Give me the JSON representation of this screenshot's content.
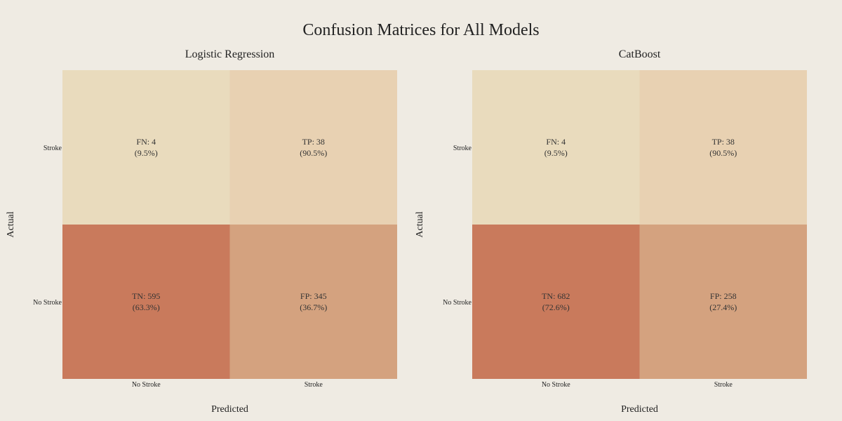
{
  "title": "Confusion Matrices for All Models",
  "chart_data": [
    {
      "type": "heatmap",
      "title": "Logistic Regression",
      "xlabel": "Predicted",
      "ylabel": "Actual",
      "x_categories": [
        "No Stroke",
        "Stroke"
      ],
      "y_categories": [
        "Stroke",
        "No Stroke"
      ],
      "cells": [
        {
          "row": 0,
          "col": 0,
          "label": "FN",
          "count": 4,
          "percent": "9.5%"
        },
        {
          "row": 0,
          "col": 1,
          "label": "TP",
          "count": 38,
          "percent": "90.5%"
        },
        {
          "row": 1,
          "col": 0,
          "label": "TN",
          "count": 595,
          "percent": "63.3%"
        },
        {
          "row": 1,
          "col": 1,
          "label": "FP",
          "count": 345,
          "percent": "36.7%"
        }
      ]
    },
    {
      "type": "heatmap",
      "title": "CatBoost",
      "xlabel": "Predicted",
      "ylabel": "Actual",
      "x_categories": [
        "No Stroke",
        "Stroke"
      ],
      "y_categories": [
        "Stroke",
        "No Stroke"
      ],
      "cells": [
        {
          "row": 0,
          "col": 0,
          "label": "FN",
          "count": 4,
          "percent": "9.5%"
        },
        {
          "row": 0,
          "col": 1,
          "label": "TP",
          "count": 38,
          "percent": "90.5%"
        },
        {
          "row": 1,
          "col": 0,
          "label": "TN",
          "count": 682,
          "percent": "72.6%"
        },
        {
          "row": 1,
          "col": 1,
          "label": "FP",
          "count": 258,
          "percent": "27.4%"
        }
      ]
    }
  ],
  "colors": {
    "background": "#efebe3",
    "FN": "#e9dbbd",
    "TP": "#e8d1b2",
    "TN": "#c97a5c",
    "FP": "#d4a27f"
  }
}
